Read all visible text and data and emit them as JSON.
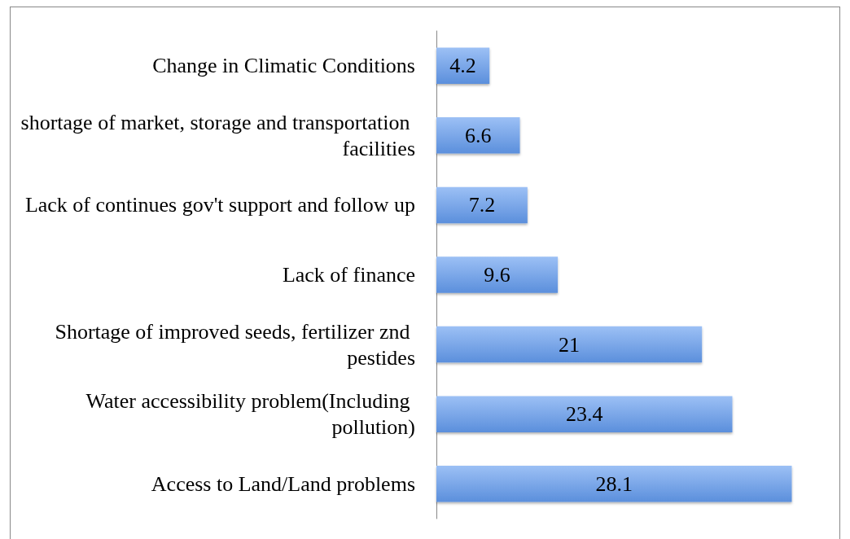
{
  "chart_data": {
    "type": "bar",
    "orientation": "horizontal",
    "data_labels": true,
    "categories": [
      "Change in Climatic Conditions",
      "shortage of market, storage and transportation facilities",
      "Lack of continues gov't support and follow up",
      "Lack of finance",
      "Shortage of improved seeds, fertilizer znd pestides",
      "Water accessibility problem(Including pollution)",
      "Access to Land/Land problems"
    ],
    "values": [
      4.2,
      6.6,
      7.2,
      9.6,
      21,
      23.4,
      28.1
    ],
    "color": "#5b8fdc"
  }
}
